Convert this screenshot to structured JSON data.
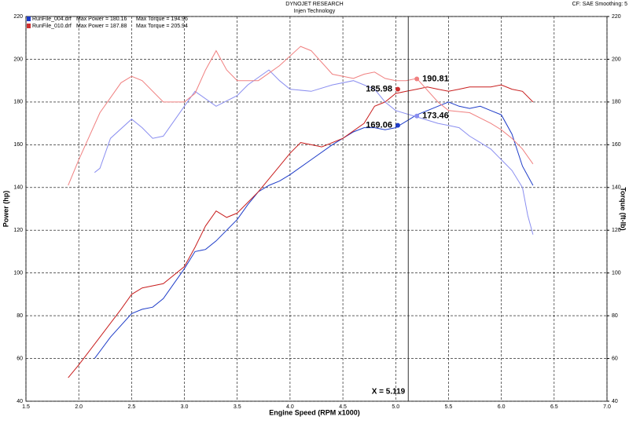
{
  "chart_data": {
    "type": "line",
    "title": "DYNOJET RESEARCH",
    "subtitle": "Injen Technology",
    "corner_note": "CF: SAE  Smoothing: 5",
    "xlabel": "Engine Speed (RPM x1000)",
    "ylabel": "Power (hp)",
    "y2label": "Torque (ft-lb)",
    "legend": [
      {
        "file": "RunFile_004.drf",
        "power": "Max Power = 180.16",
        "torque": "Max Torque = 194.96",
        "color": "#1e3cc8"
      },
      {
        "file": "RunFile_010.drf",
        "power": "Max Power = 187.88",
        "torque": "Max Torque = 205.94",
        "color": "#d03030"
      }
    ],
    "xlim": [
      1.5,
      7.0
    ],
    "xticks": [
      1.5,
      {
        "value": 2,
        "label": "2.0"
      },
      2.5,
      {
        "value": 3,
        "label": "3.0"
      },
      3.5,
      {
        "value": 4,
        "label": "4.0"
      },
      4.5,
      {
        "value": 5,
        "label": "5.0"
      },
      5.5,
      {
        "value": 6,
        "label": "6.0"
      },
      6.5,
      {
        "value": 7,
        "label": "7.0"
      }
    ],
    "ylim": [
      40,
      220
    ],
    "yticks": [
      40,
      60,
      80,
      100,
      120,
      140,
      160,
      180,
      200,
      220
    ],
    "y2lim": [
      40,
      220
    ],
    "y2ticks": [
      40,
      60,
      80,
      100,
      120,
      140,
      160,
      180,
      200,
      220
    ],
    "grid": true,
    "series": [
      {
        "color": "#1e3cc8",
        "x": [
          2.15,
          2.3,
          2.5,
          2.6,
          2.7,
          2.8,
          3.0,
          3.1,
          3.2,
          3.3,
          3.5,
          3.6,
          3.7,
          3.8,
          3.9,
          4.0,
          4.2,
          4.4,
          4.6,
          4.7,
          4.8,
          4.9,
          5.0,
          5.1,
          5.2,
          5.3,
          5.4,
          5.5,
          5.6,
          5.7,
          5.8,
          5.9,
          6.0,
          6.1,
          6.2,
          6.3
        ],
        "values": [
          60,
          70,
          81,
          83,
          84,
          88,
          102,
          110,
          111,
          115,
          125,
          132,
          138,
          141,
          143,
          146,
          153,
          160,
          166,
          168,
          168,
          167,
          168,
          171,
          174,
          176,
          178,
          180,
          178,
          177,
          178,
          176,
          174,
          165,
          150,
          141
        ]
      },
      {
        "color": "#c81e1e",
        "x": [
          1.9,
          2.0,
          2.2,
          2.4,
          2.5,
          2.6,
          2.8,
          3.0,
          3.1,
          3.2,
          3.3,
          3.4,
          3.5,
          3.7,
          3.9,
          4.0,
          4.1,
          4.2,
          4.3,
          4.5,
          4.7,
          4.8,
          4.9,
          5.0,
          5.1,
          5.2,
          5.3,
          5.4,
          5.5,
          5.6,
          5.7,
          5.8,
          5.9,
          6.0,
          6.1,
          6.2,
          6.3
        ],
        "values": [
          51,
          57,
          70,
          83,
          90,
          93,
          95,
          103,
          112,
          122,
          129,
          126,
          128,
          138,
          150,
          156,
          161,
          160,
          159,
          163,
          170,
          178,
          180,
          184,
          185,
          186,
          187,
          186,
          185,
          186,
          187,
          187,
          187,
          188,
          186,
          185,
          180
        ]
      },
      {
        "color": "#8a8ef0",
        "axis": "y2",
        "x": [
          2.15,
          2.2,
          2.3,
          2.5,
          2.6,
          2.7,
          2.8,
          3.0,
          3.1,
          3.3,
          3.5,
          3.6,
          3.8,
          3.9,
          4.0,
          4.2,
          4.4,
          4.6,
          4.8,
          4.9,
          5.0,
          5.2,
          5.4,
          5.5,
          5.6,
          5.7,
          5.8,
          5.9,
          6.0,
          6.1,
          6.2,
          6.25,
          6.3
        ],
        "values": [
          147,
          149,
          163,
          172,
          168,
          163,
          164,
          178,
          185,
          178,
          183,
          188,
          195,
          190,
          186,
          185,
          188,
          190,
          186,
          180,
          176,
          173,
          170,
          169,
          168,
          164,
          161,
          158,
          153,
          148,
          140,
          127,
          118
        ]
      },
      {
        "color": "#f08080",
        "axis": "y2",
        "x": [
          1.9,
          2.0,
          2.2,
          2.4,
          2.5,
          2.6,
          2.8,
          3.0,
          3.1,
          3.2,
          3.3,
          3.4,
          3.5,
          3.7,
          3.9,
          4.1,
          4.2,
          4.4,
          4.6,
          4.7,
          4.8,
          4.9,
          5.0,
          5.1,
          5.2,
          5.4,
          5.5,
          5.7,
          5.9,
          6.0,
          6.1,
          6.2,
          6.3
        ],
        "values": [
          141,
          153,
          175,
          189,
          192,
          190,
          180,
          180,
          184,
          195,
          204,
          195,
          190,
          190,
          197,
          206,
          204,
          193,
          191,
          193,
          194,
          191,
          190,
          190,
          191,
          180,
          176,
          175,
          170,
          167,
          163,
          158,
          151
        ]
      }
    ],
    "points": [
      {
        "x": 5.2,
        "y": 190.81,
        "color": "#f08080"
      },
      {
        "x": 5.02,
        "y": 185.98,
        "color": "#d03030"
      },
      {
        "x": 5.2,
        "y": 173.46,
        "color": "#8a8ef0"
      },
      {
        "x": 5.02,
        "y": 169.06,
        "color": "#1e3cc8"
      }
    ],
    "cursor_x": 5.119,
    "cursor_label": "X = 5.119"
  }
}
